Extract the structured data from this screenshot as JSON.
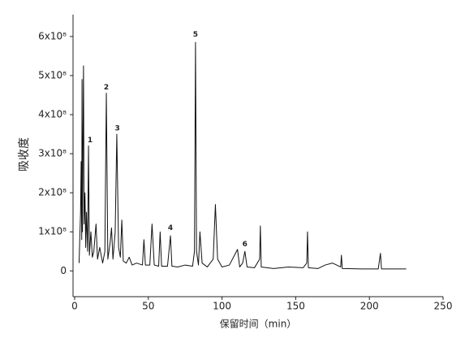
{
  "chart_data": {
    "type": "line",
    "x_label": "保留时间（min）",
    "y_label": "吸收度",
    "xlim": [
      0,
      250
    ],
    "xticks": [
      0,
      50,
      100,
      150,
      200,
      250
    ],
    "ylim": [
      -66000000,
      656000000
    ],
    "yticks": [
      0,
      {
        "value": 100000000,
        "label": "1x10⁸"
      },
      {
        "value": 200000000,
        "label": "2x10⁸"
      },
      {
        "value": 300000000,
        "label": "3x10⁸"
      },
      {
        "value": 400000000,
        "label": "4x10⁸"
      },
      {
        "value": 500000000,
        "label": "5x10⁸"
      },
      {
        "value": 600000000,
        "label": "6x10⁸"
      }
    ],
    "x": [
      3,
      4,
      4.4,
      4.8,
      5,
      5.3,
      5.6,
      6,
      6.4,
      7,
      7.5,
      8,
      8.8,
      9.4,
      10,
      11,
      12,
      13,
      14.5,
      15.5,
      17,
      19,
      20.5,
      21.5,
      22.5,
      24,
      25,
      26,
      27.5,
      28.6,
      29.8,
      31,
      32,
      33,
      35,
      37,
      39,
      42,
      46,
      47,
      48,
      51,
      52.5,
      54,
      57,
      58,
      59,
      63,
      65,
      66,
      70,
      75,
      80,
      81.3,
      82,
      82.7,
      84,
      85,
      86.5,
      90,
      94,
      95.5,
      97,
      100,
      105,
      110.5,
      112,
      114,
      115.5,
      117,
      122,
      125.5,
      126,
      126.6,
      135,
      145,
      155,
      157.5,
      158,
      158.6,
      165,
      170,
      175,
      180.5,
      181,
      181.6,
      195,
      206,
      207.5,
      208.2,
      215,
      225
    ],
    "series": [
      {
        "color": "#111111",
        "values": [
          20000000.0,
          150000000.0,
          280000000.0,
          80000000.0,
          490000000.0,
          100000000.0,
          300000000.0,
          525000000.0,
          120000000.0,
          200000000.0,
          60000000.0,
          150000000.0,
          50000000.0,
          320000000.0,
          40000000.0,
          100000000.0,
          35000000.0,
          50000000.0,
          120000000.0,
          30000000.0,
          60000000.0,
          20000000.0,
          50000000.0,
          455000000.0,
          30000000.0,
          70000000.0,
          110000000.0,
          30000000.0,
          100000000.0,
          350000000.0,
          60000000.0,
          35000000.0,
          130000000.0,
          25000000.0,
          20000000.0,
          35000000.0,
          15000000.0,
          20000000.0,
          15000000.0,
          80000000.0,
          15000000.0,
          15000000.0,
          120000000.0,
          15000000.0,
          12000000.0,
          100000000.0,
          12000000.0,
          12000000.0,
          90000000.0,
          12000000.0,
          10000000.0,
          15000000.0,
          12000000.0,
          50000000.0,
          585000000.0,
          50000000.0,
          15000000.0,
          100000000.0,
          20000000.0,
          10000000.0,
          30000000.0,
          170000000.0,
          30000000.0,
          10000000.0,
          15000000.0,
          55000000.0,
          10000000.0,
          20000000.0,
          50000000.0,
          10000000.0,
          8000000.0,
          30000000.0,
          115000000.0,
          10000000.0,
          6000000.0,
          10000000.0,
          8000000.0,
          20000000.0,
          100000000.0,
          8000000.0,
          6000000.0,
          15000000.0,
          20000000.0,
          10000000.0,
          40000000.0,
          6000000.0,
          5000000.0,
          5000000.0,
          45000000.0,
          5000000.0,
          5000000.0,
          5000000.0
        ]
      }
    ],
    "annotations": [
      {
        "text": "1",
        "x": 10.5,
        "y": 335000000
      },
      {
        "text": "2",
        "x": 21.5,
        "y": 470000000
      },
      {
        "text": "3",
        "x": 29,
        "y": 365000000
      },
      {
        "text": "4",
        "x": 65,
        "y": 110000000
      },
      {
        "text": "5",
        "x": 82,
        "y": 605000000
      },
      {
        "text": "6",
        "x": 115.5,
        "y": 68000000
      }
    ]
  }
}
